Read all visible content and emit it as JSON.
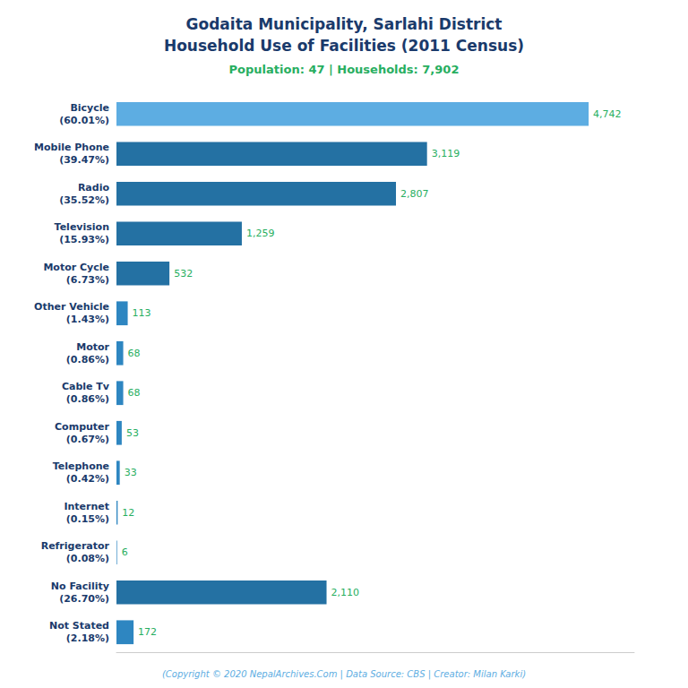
{
  "chart_data": {
    "type": "bar",
    "orientation": "horizontal",
    "title": "Godaita Municipality, Sarlahi District\nHousehold Use of Facilities (2011 Census)",
    "subtitle": "Population: 47 | Households: 7,902",
    "annotations": [
      "(Copyright © 2020 NepalArchives.Com | Data Source: CBS | Creator: Milan Karki)"
    ],
    "categories": [
      "Bicycle\n(60.01%)",
      "Mobile Phone\n(39.47%)",
      "Radio\n(35.52%)",
      "Television\n(15.93%)",
      "Motor Cycle\n(6.73%)",
      "Other Vehicle\n(1.43%)",
      "Motor\n(0.86%)",
      "Cable Tv\n(0.86%)",
      "Computer\n(0.67%)",
      "Telephone\n(0.42%)",
      "Internet\n(0.15%)",
      "Refrigerator\n(0.08%)",
      "No Facility\n(26.70%)",
      "Not Stated\n(2.18%)"
    ],
    "values": [
      4742,
      3119,
      2807,
      1259,
      532,
      113,
      68,
      68,
      53,
      33,
      12,
      6,
      2110,
      172
    ],
    "value_labels": [
      "4,742",
      "3,119",
      "2,807",
      "1,259",
      "532",
      "113",
      "68",
      "68",
      "53",
      "33",
      "12",
      "6",
      "2,110",
      "172"
    ],
    "colors": [
      "#5DADE2",
      "#2471A3",
      "#2471A3",
      "#2471A3",
      "#2471A3",
      "#2E86C1",
      "#2E86C1",
      "#2E86C1",
      "#2E86C1",
      "#2E86C1",
      "#2E86C1",
      "#2E86C1",
      "#2471A3",
      "#2E86C1"
    ],
    "xlim": [
      0,
      5200
    ],
    "data_labels": true,
    "tick_labels": "y",
    "grid": false
  }
}
